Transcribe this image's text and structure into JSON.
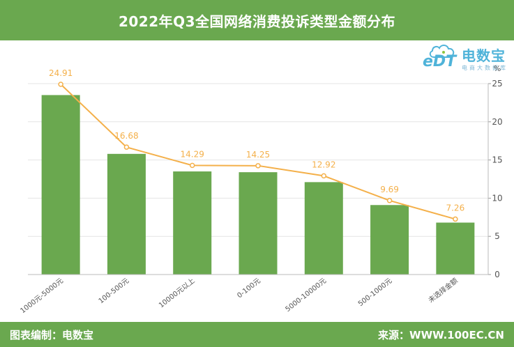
{
  "header": {
    "title": "2022年Q3全国网络消费投诉类型金额分布"
  },
  "footer": {
    "left": "图表编制：电数宝",
    "right": "来源：WWW.100EC.CN"
  },
  "logo": {
    "brand_cn": "电数宝",
    "brand_en": "eDT",
    "tagline": "电商大数据库"
  },
  "chart_data": {
    "type": "bar",
    "title": "2022年Q3全国网络消费投诉类型金额分布",
    "ylabel": "%",
    "ylim": [
      0,
      25
    ],
    "yticks": [
      0,
      5,
      10,
      15,
      20,
      25
    ],
    "categories": [
      "1000元-5000元",
      "100-500元",
      "10000元以上",
      "0-100元",
      "5000-10000元",
      "500-1000元",
      "未选择金额"
    ],
    "series": [
      {
        "type": "bar",
        "values": [
          23.5,
          15.8,
          13.5,
          13.4,
          12.1,
          9.1,
          6.8
        ],
        "color": "#6aa84f"
      },
      {
        "type": "line",
        "values": [
          24.91,
          16.68,
          14.29,
          14.25,
          12.92,
          9.69,
          7.26
        ],
        "color": "#f4b04a"
      }
    ],
    "data_labels": [
      "24.91",
      "16.68",
      "14.29",
      "14.25",
      "12.92",
      "9.69",
      "7.26"
    ],
    "grid": true
  }
}
